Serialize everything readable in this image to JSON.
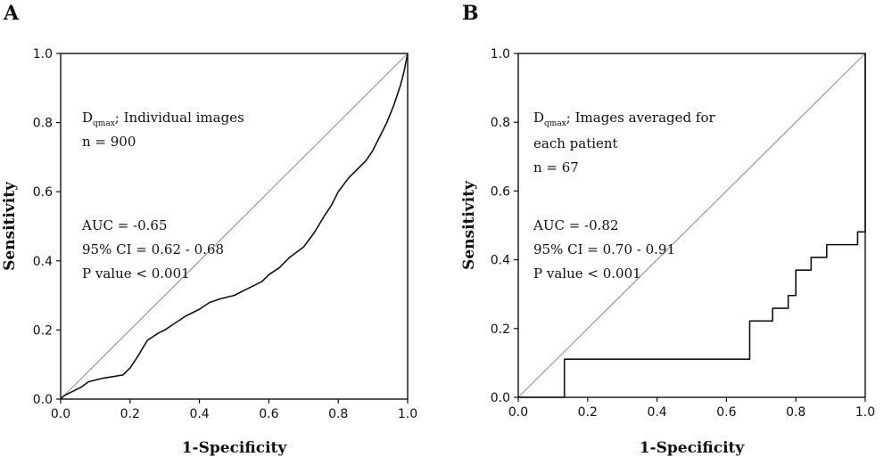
{
  "panels": [
    {
      "label": "A"
    },
    {
      "label": "B"
    }
  ],
  "chart_data": [
    {
      "type": "line",
      "panel": "A",
      "xlabel": "1-Specificity",
      "ylabel": "Sensitivity",
      "xlim": [
        0.0,
        1.0
      ],
      "ylim": [
        0.0,
        1.0
      ],
      "xticks": [
        "0.0",
        "0.2",
        "0.4",
        "0.6",
        "0.8",
        "1.0"
      ],
      "yticks": [
        "0.0",
        "0.2",
        "0.4",
        "0.6",
        "0.8",
        "1.0"
      ],
      "annotation": {
        "line1_main": "D",
        "line1_sub": "qmax",
        "line1_rest": "; Individual images",
        "line2": "n = 900",
        "auc": "AUC = -0.65",
        "ci": "95% CI = 0.62 - 0.68",
        "p": "P value < 0.001"
      },
      "reference_line": {
        "x": [
          0,
          1
        ],
        "y": [
          0,
          1
        ]
      },
      "series": [
        {
          "x": [
            0.0,
            0.01,
            0.02,
            0.04,
            0.06,
            0.08,
            0.1,
            0.12,
            0.15,
            0.18,
            0.2,
            0.22,
            0.25,
            0.28,
            0.3,
            0.33,
            0.36,
            0.4,
            0.43,
            0.46,
            0.5,
            0.54,
            0.58,
            0.6,
            0.63,
            0.66,
            0.7,
            0.73,
            0.76,
            0.78,
            0.8,
            0.83,
            0.86,
            0.88,
            0.9,
            0.92,
            0.94,
            0.96,
            0.97,
            0.98,
            0.99,
            1.0
          ],
          "y": [
            0.0,
            0.01,
            0.015,
            0.025,
            0.035,
            0.05,
            0.055,
            0.06,
            0.065,
            0.07,
            0.09,
            0.12,
            0.17,
            0.19,
            0.2,
            0.22,
            0.24,
            0.26,
            0.28,
            0.29,
            0.3,
            0.32,
            0.34,
            0.36,
            0.38,
            0.41,
            0.44,
            0.48,
            0.53,
            0.56,
            0.6,
            0.64,
            0.67,
            0.69,
            0.72,
            0.76,
            0.8,
            0.85,
            0.88,
            0.91,
            0.95,
            1.0
          ]
        }
      ]
    },
    {
      "type": "line",
      "panel": "B",
      "xlabel": "1-Specificity",
      "ylabel": "Sensitivity",
      "xlim": [
        0.0,
        1.0
      ],
      "ylim": [
        0.0,
        1.0
      ],
      "xticks": [
        "0.0",
        "0.2",
        "0.4",
        "0.6",
        "0.8",
        "1.0"
      ],
      "yticks": [
        "0.0",
        "0.2",
        "0.4",
        "0.6",
        "0.8",
        "1.0"
      ],
      "annotation": {
        "line1_main": "D",
        "line1_sub": "qmax",
        "line1_rest": "; Images averaged for",
        "line1b": "each patient",
        "line2": "n = 67",
        "auc": "AUC = -0.82",
        "ci": "95% CI = 0.70 - 0.91",
        "p": "P value < 0.001"
      },
      "reference_line": {
        "x": [
          0,
          1
        ],
        "y": [
          0,
          1
        ]
      },
      "series": [
        {
          "x": [
            0.0,
            0.133,
            0.133,
            0.667,
            0.667,
            0.733,
            0.733,
            0.778,
            0.778,
            0.8,
            0.8,
            0.844,
            0.844,
            0.889,
            0.889,
            0.978,
            0.978,
            1.0,
            1.0
          ],
          "y": [
            0.0,
            0.0,
            0.111,
            0.111,
            0.222,
            0.222,
            0.259,
            0.259,
            0.296,
            0.296,
            0.37,
            0.37,
            0.407,
            0.407,
            0.444,
            0.444,
            0.481,
            0.481,
            1.0
          ]
        }
      ]
    }
  ]
}
